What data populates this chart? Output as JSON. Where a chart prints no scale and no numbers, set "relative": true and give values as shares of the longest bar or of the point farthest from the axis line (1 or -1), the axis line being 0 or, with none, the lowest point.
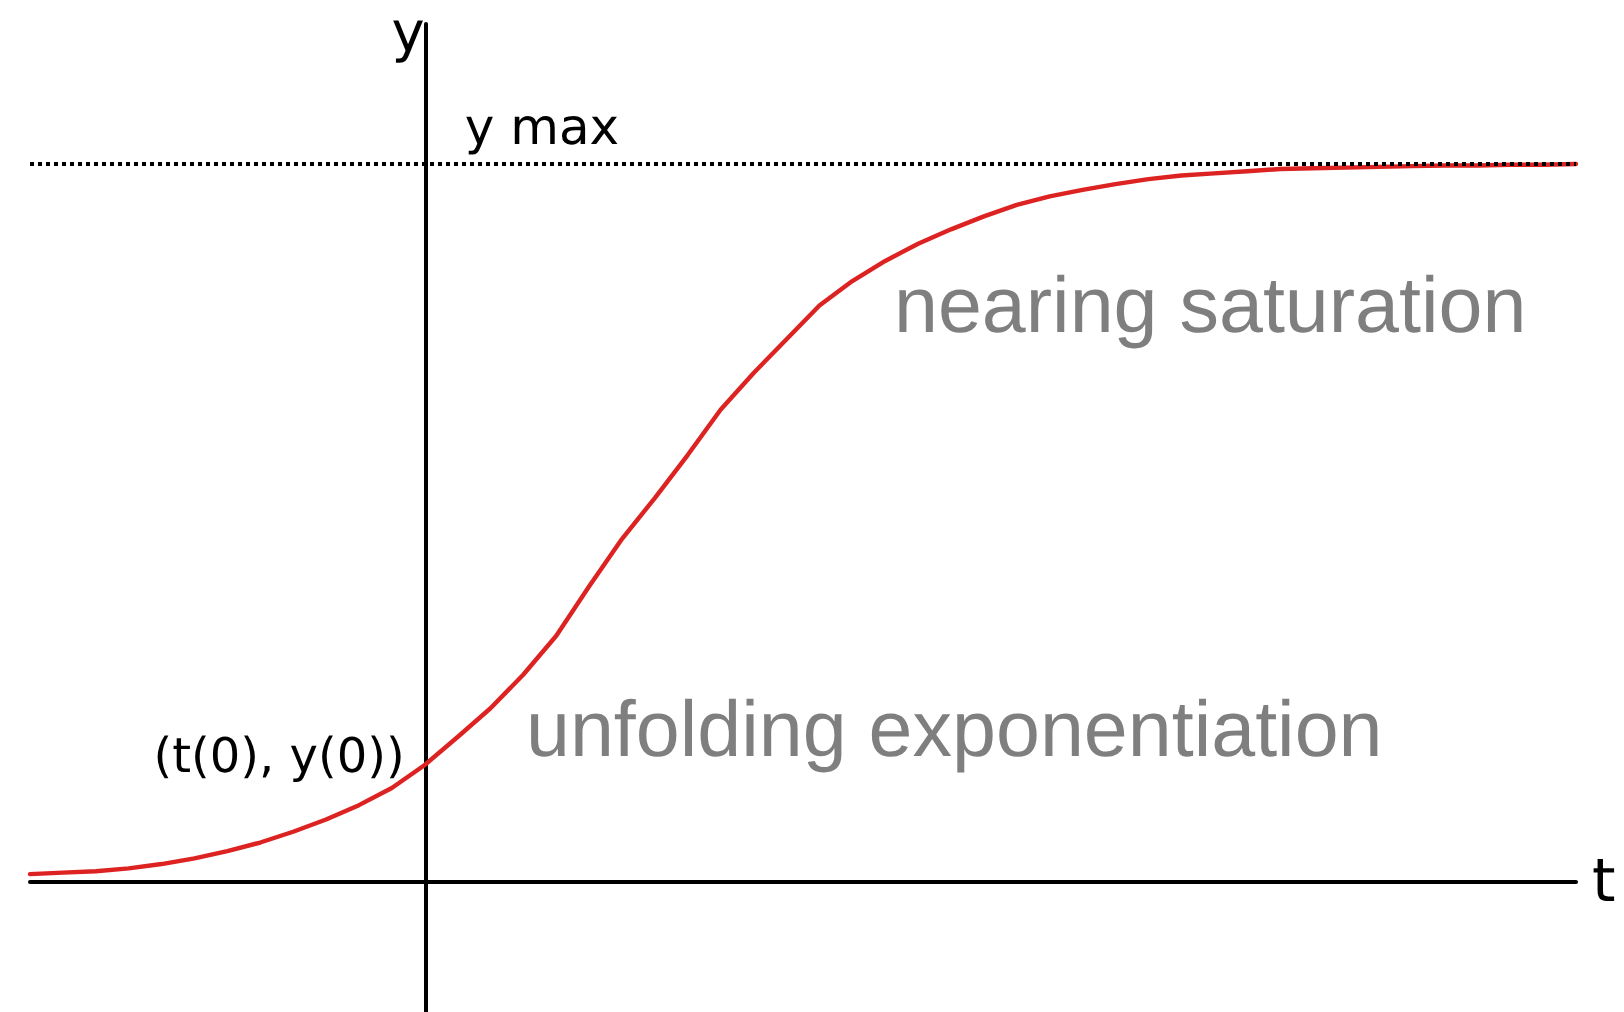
{
  "chart_data": {
    "type": "line",
    "xlabel": "t",
    "ylabel": "y",
    "relative": true,
    "categories": [
      null,
      null,
      null,
      null,
      null,
      null,
      null,
      null,
      null,
      null,
      null,
      null,
      null,
      null,
      null,
      null,
      null,
      null,
      null,
      null,
      null,
      null,
      null,
      null,
      null,
      null,
      null,
      null,
      null,
      null,
      null,
      null,
      null,
      null,
      null,
      null,
      null,
      null,
      null,
      null,
      null,
      null,
      null,
      null,
      null,
      null,
      null,
      null
    ],
    "series": [
      {
        "color": "#dd2222",
        "values": [
          0.011,
          0.013,
          0.015,
          0.019,
          0.025,
          0.033,
          0.043,
          0.055,
          0.07,
          0.087,
          0.107,
          0.131,
          0.163,
          0.202,
          0.242,
          0.289,
          0.343,
          0.412,
          0.478,
          0.535,
          0.595,
          0.658,
          0.709,
          0.756,
          0.803,
          0.837,
          0.865,
          0.889,
          0.909,
          0.927,
          0.943,
          0.955,
          0.964,
          0.972,
          0.979,
          0.984,
          0.987,
          0.99,
          0.993,
          0.994,
          0.995,
          0.996,
          0.997,
          0.998,
          0.998,
          0.999,
          0.999,
          1.0
        ]
      }
    ],
    "ref_lines": [
      {
        "axis": "y",
        "value": 1,
        "label": "y max",
        "color": "#000000",
        "line_style": "dotted"
      }
    ],
    "annotations": [
      "(t(0), y(0))",
      "unfolding exponentiation",
      "nearing saturation"
    ],
    "marker": "none",
    "line_style": "solid",
    "grid": false
  }
}
